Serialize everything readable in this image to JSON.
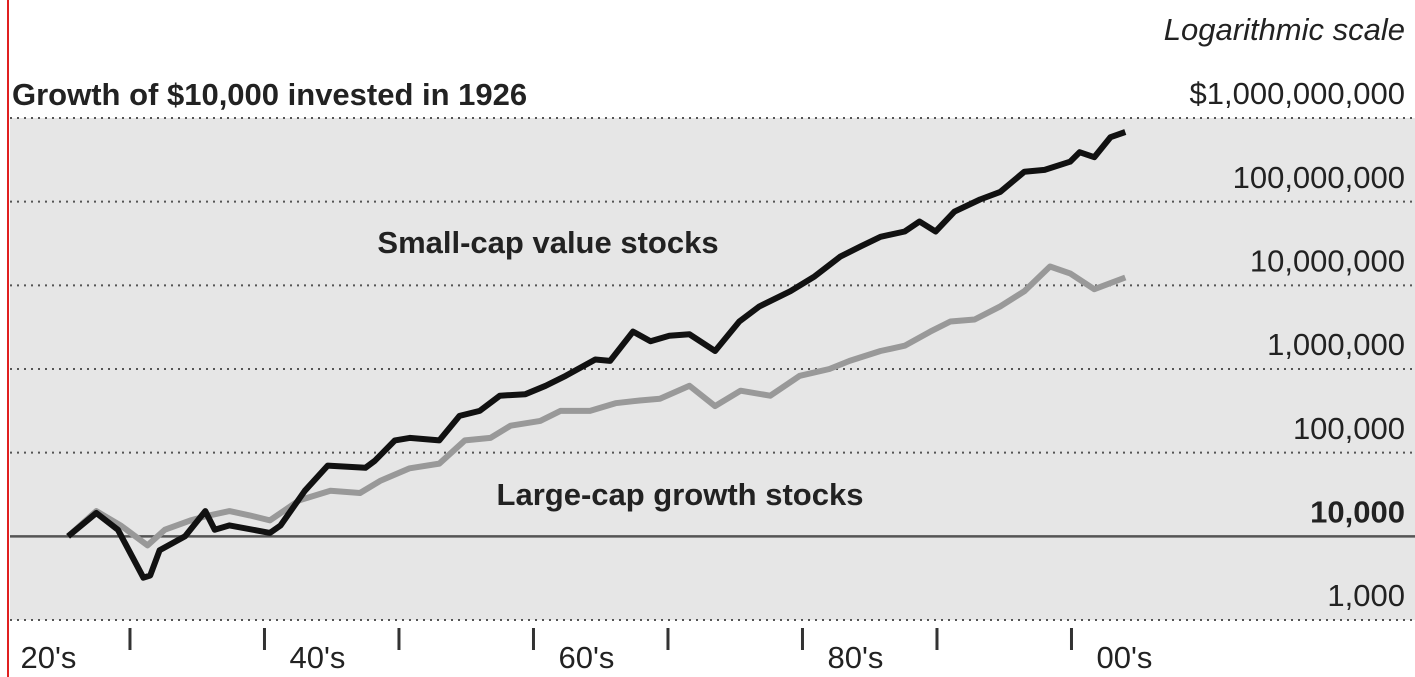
{
  "chart_data": {
    "type": "line",
    "title": "Growth of $10,000 invested in 1926",
    "scale_note": "Logarithmic scale",
    "log_scale": true,
    "grid": true,
    "background": "#e6e6e6",
    "baseline": 10000,
    "xlim": [
      1921.08,
      2025.54
    ],
    "xticks": [
      1930,
      1940,
      1950,
      1960,
      1970,
      1980,
      1990,
      2000
    ],
    "decade_labels": [
      {
        "value": 1920,
        "label": "20's"
      },
      {
        "value": 1940,
        "label": "40's"
      },
      {
        "value": 1960,
        "label": "60's"
      },
      {
        "value": 1980,
        "label": "80's"
      },
      {
        "value": 2000,
        "label": "00's"
      }
    ],
    "ylim": [
      1000,
      1000000000
    ],
    "yticks": [
      {
        "value": 1000000000,
        "label": "$1,000,000,000"
      },
      {
        "value": 100000000,
        "label": "100,000,000"
      },
      {
        "value": 10000000,
        "label": "10,000,000"
      },
      {
        "value": 1000000,
        "label": "1,000,000"
      },
      {
        "value": 100000,
        "label": "100,000"
      },
      {
        "value": 10000,
        "label": "10,000"
      },
      {
        "value": 1000,
        "label": "1,000"
      }
    ],
    "series": [
      {
        "name": "Small-cap value stocks",
        "color": "#111111",
        "x": [
          1925.4,
          1927.5,
          1929.1,
          1931,
          1931.5,
          1932.2,
          1934.1,
          1935.6,
          1936.3,
          1937.4,
          1940.4,
          1941.2,
          1943,
          1944.7,
          1947.5,
          1948.2,
          1949.7,
          1950.8,
          1953,
          1954.5,
          1956,
          1957.5,
          1959.4,
          1960.9,
          1962.4,
          1964.6,
          1965.7,
          1967.4,
          1968.7,
          1970.1,
          1971.6,
          1973.5,
          1975.3,
          1976.8,
          1979.1,
          1980.9,
          1982.8,
          1984.3,
          1985.8,
          1987.6,
          1988.7,
          1989.9,
          1991.3,
          1993.2,
          1994.7,
          1996.5,
          1998,
          1999.9,
          2000.6,
          2001.7,
          2002.9,
          2004
        ],
        "values": [
          10000,
          19000,
          12000,
          3200,
          3400,
          6800,
          10000,
          20000,
          12000,
          13500,
          11000,
          13500,
          35000,
          70000,
          66000,
          80000,
          140000,
          150000,
          140000,
          275000,
          316000,
          480000,
          500000,
          630000,
          830000,
          1300000,
          1250000,
          2800000,
          2150000,
          2500000,
          2600000,
          1640000,
          3700000,
          5600000,
          8500000,
          12800000,
          22000000,
          29000000,
          38000000,
          44000000,
          58000000,
          44000000,
          76000000,
          106000000,
          131000000,
          228000000,
          240000000,
          300000000,
          390000000,
          340000000,
          590000000,
          680000000
        ]
      },
      {
        "name": "Large-cap growth stocks",
        "color": "#999999",
        "x": [
          1925.4,
          1927.5,
          1929.3,
          1931.3,
          1932.6,
          1934.5,
          1935.9,
          1937.4,
          1938.9,
          1940.4,
          1942.6,
          1944.9,
          1947.1,
          1948.6,
          1950.8,
          1953,
          1954.9,
          1956.8,
          1958.3,
          1960.5,
          1962,
          1964.2,
          1966.1,
          1967.9,
          1969.4,
          1971.6,
          1973.5,
          1975.4,
          1977.6,
          1979.8,
          1982,
          1983.5,
          1985.8,
          1987.6,
          1989.5,
          1991,
          1992.8,
          1994.7,
          1996.5,
          1998.4,
          1999.9,
          2001.7,
          2004
        ],
        "values": [
          10000,
          20000,
          13500,
          7800,
          12000,
          15500,
          17800,
          20000,
          17800,
          15500,
          27000,
          35000,
          33000,
          46000,
          65000,
          74000,
          140000,
          150000,
          210000,
          240000,
          316000,
          316000,
          390000,
          420000,
          440000,
          630000,
          360000,
          550000,
          480000,
          830000,
          1000000,
          1250000,
          1640000,
          1900000,
          2800000,
          3700000,
          3900000,
          5600000,
          8500000,
          16800000,
          13900000,
          9000000,
          12400000
        ]
      }
    ]
  }
}
